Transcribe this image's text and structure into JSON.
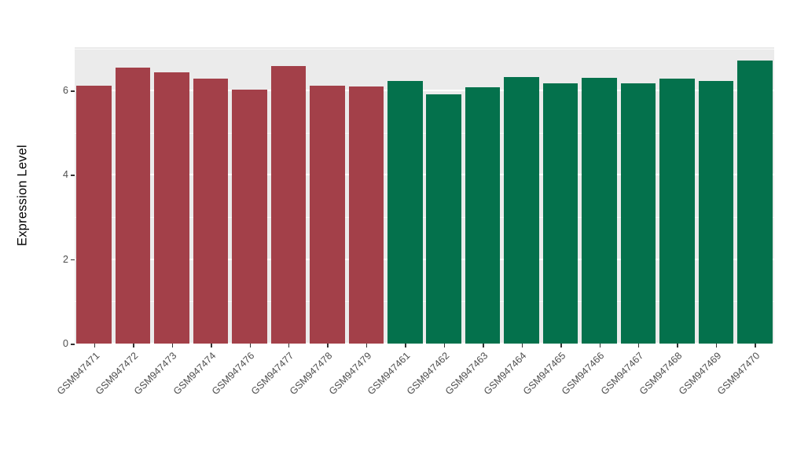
{
  "chart_data": {
    "type": "bar",
    "title": "",
    "xlabel": "",
    "ylabel": "Expression Level",
    "ylim": [
      0,
      7.03
    ],
    "yticks": [
      0,
      2,
      4,
      6
    ],
    "yminorticks": [
      1,
      3,
      5,
      7
    ],
    "grid": "on",
    "legend": "none",
    "panel_background": "#EBEBEB",
    "grid_color": "#FFFFFF",
    "tick_color": "#333333",
    "axis_text_color": "#4D4D4D",
    "group_colors": {
      "group_red": "#A34049",
      "group_green": "#04714C"
    },
    "categories": [
      "GSM947471",
      "GSM947472",
      "GSM947473",
      "GSM947474",
      "GSM947476",
      "GSM947477",
      "GSM947478",
      "GSM947479",
      "GSM947461",
      "GSM947462",
      "GSM947463",
      "GSM947464",
      "GSM947465",
      "GSM947466",
      "GSM947467",
      "GSM947468",
      "GSM947469",
      "GSM947470"
    ],
    "values": [
      6.12,
      6.55,
      6.43,
      6.28,
      6.03,
      6.58,
      6.12,
      6.1,
      6.22,
      5.92,
      6.08,
      6.33,
      6.17,
      6.31,
      6.18,
      6.28,
      6.23,
      6.72
    ],
    "colors": [
      "#A34049",
      "#A34049",
      "#A34049",
      "#A34049",
      "#A34049",
      "#A34049",
      "#A34049",
      "#A34049",
      "#04714C",
      "#04714C",
      "#04714C",
      "#04714C",
      "#04714C",
      "#04714C",
      "#04714C",
      "#04714C",
      "#04714C",
      "#04714C"
    ]
  }
}
